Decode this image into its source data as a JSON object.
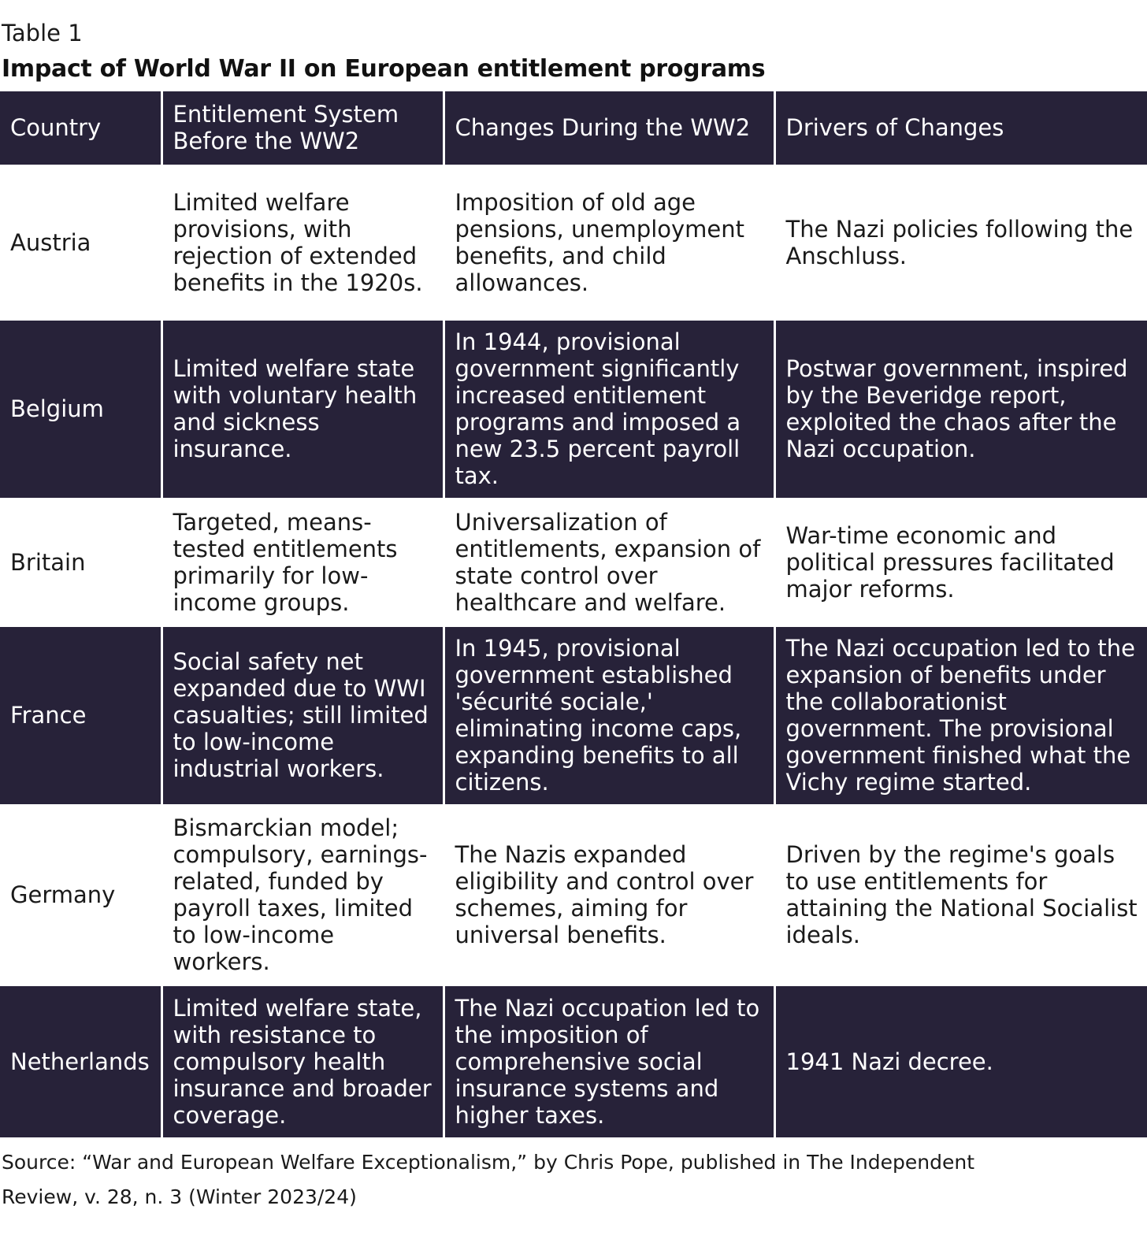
{
  "table_label": "Table 1",
  "title": "Impact of World War II on European entitlement programs",
  "headers": {
    "country": "Country",
    "before": "Entitlement System Before the WW2",
    "during": "Changes During the WW2",
    "drivers": "Drivers of Changes"
  },
  "rows": [
    {
      "country": "Austria",
      "before": "Limited welfare provisions, with rejection of extended benefits in the 1920s.",
      "during": "Imposition of old age pensions, unemployment benefits, and child allowances.",
      "drivers": "The Nazi policies following the Anschluss."
    },
    {
      "country": "Belgium",
      "before": "Limited welfare state with voluntary health and sickness insurance.",
      "during": "In 1944, provisional government significantly increased entitlement programs and imposed a new 23.5 percent payroll tax.",
      "drivers": "Postwar government, inspired by the Beveridge report, exploited the chaos after the Nazi occupation."
    },
    {
      "country": "Britain",
      "before": "Targeted, means-tested entitlements primarily for low-income groups.",
      "during": "Universalization of entitlements, expansion of state control over healthcare and welfare.",
      "drivers": "War-time economic and political pressures facilitated major reforms."
    },
    {
      "country": "France",
      "before": "Social safety net expanded due to WWI casualties; still limited to low-income industrial workers.",
      "during": "In 1945, provisional government established 'sécurité sociale,' eliminating income caps, expanding benefits to all citizens.",
      "drivers": "The Nazi occupation led to the expansion of benefits under the collaborationist government. The provisional government finished what the Vichy regime started."
    },
    {
      "country": "Germany",
      "before": "Bismarckian model; compulsory, earnings-related, funded by payroll taxes, limited to low-income workers.",
      "during": "The Nazis expanded eligibility and control over schemes, aiming for universal benefits.",
      "drivers": "Driven by the regime's goals to use entitlements for attaining the National Socialist ideals."
    },
    {
      "country": "Netherlands",
      "before": "Limited welfare state, with resistance to compulsory health insurance and broader coverage.",
      "during": "The Nazi occupation led to the imposition of comprehensive social insurance systems and higher taxes.",
      "drivers": "1941 Nazi decree."
    }
  ],
  "source": "Source: “War and European Welfare Exceptionalism,” by Chris Pope, published in The Independent Review, v. 28, n. 3 (Winter 2023/24)",
  "colors": {
    "dark_band": "#272239",
    "text_on_dark": "#ffffff",
    "text": "#1a1a1a"
  }
}
